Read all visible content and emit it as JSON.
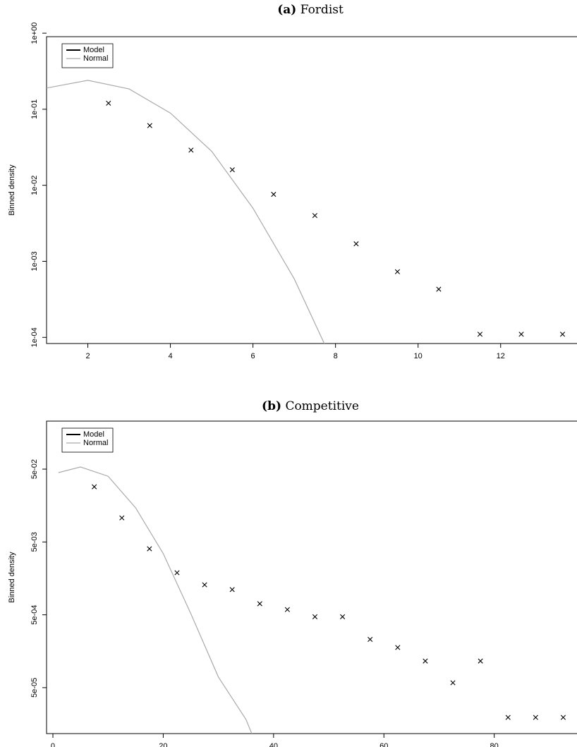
{
  "chart_data": [
    {
      "type": "line",
      "panel_label": "(a)",
      "title": "Fordist",
      "y_label": "Binned density",
      "log_y": true,
      "legend": "top-left",
      "xlim": [
        1,
        13.85
      ],
      "xticks": [
        2,
        4,
        6,
        8,
        10,
        12
      ],
      "ylim": [
        8.3e-05,
        0.9
      ],
      "yticks": [
        {
          "value": 1,
          "label": "1e+00"
        },
        {
          "value": 0.1,
          "label": "1e-01"
        },
        {
          "value": 0.01,
          "label": "1e-02"
        },
        {
          "value": 0.001,
          "label": "1e-03"
        },
        {
          "value": 0.0001,
          "label": "1e-04"
        }
      ],
      "series": [
        {
          "name": "Model",
          "color": "#000000",
          "style": "points",
          "x": [
            1.5,
            2.5,
            3.5,
            4.5,
            5.5,
            6.5,
            7.5,
            8.5,
            9.5,
            10.5,
            11.5,
            12.5,
            13.5
          ],
          "values": [
            0.61,
            0.12,
            0.061,
            0.029,
            0.016,
            0.0076,
            0.004,
            0.0017,
            0.00073,
            0.00043,
            0.00011,
            0.00011,
            0.00011
          ]
        },
        {
          "name": "Normal",
          "color": "#aaaaaa",
          "style": "lines",
          "x": [
            1,
            2,
            3,
            4,
            5,
            6,
            7,
            8
          ],
          "values": [
            0.19,
            0.24,
            0.185,
            0.089,
            0.028,
            0.005,
            0.00059,
            4e-05
          ]
        }
      ]
    },
    {
      "type": "line",
      "panel_label": "(b)",
      "title": "Competitive",
      "y_label": "Binned density",
      "log_y": true,
      "legend": "top-left",
      "xlim": [
        -1.15,
        95
      ],
      "xticks": [
        0,
        20,
        40,
        60,
        80
      ],
      "ylim": [
        1.17e-05,
        0.228
      ],
      "yticks": [
        {
          "value": 0.05,
          "label": "5e-02"
        },
        {
          "value": 0.005,
          "label": "5e-03"
        },
        {
          "value": 0.0005,
          "label": "5e-04"
        },
        {
          "value": 5e-05,
          "label": "5e-05"
        }
      ],
      "series": [
        {
          "name": "Model",
          "color": "#000000",
          "style": "points",
          "x": [
            2.5,
            7.5,
            12.5,
            17.5,
            22.5,
            27.5,
            32.5,
            37.5,
            42.5,
            47.5,
            52.5,
            57.5,
            62.5,
            67.5,
            72.5,
            77.5,
            82.5,
            87.5,
            92.5
          ],
          "values": [
            0.152,
            0.0286,
            0.0107,
            0.00403,
            0.00189,
            0.00129,
            0.00111,
            0.00071,
            0.00059,
            0.00047,
            0.00047,
            0.00023,
            0.000178,
            0.000116,
            5.83e-05,
            0.000116,
            1.95e-05,
            1.95e-05,
            1.95e-05
          ]
        },
        {
          "name": "Normal",
          "color": "#aaaaaa",
          "style": "lines",
          "x": [
            1,
            5,
            10,
            15,
            20,
            25,
            30,
            35,
            36.2
          ],
          "values": [
            0.0448,
            0.0535,
            0.04,
            0.0147,
            0.00346,
            0.000519,
            7e-05,
            1.83e-05,
            1.1e-05
          ]
        }
      ]
    }
  ]
}
